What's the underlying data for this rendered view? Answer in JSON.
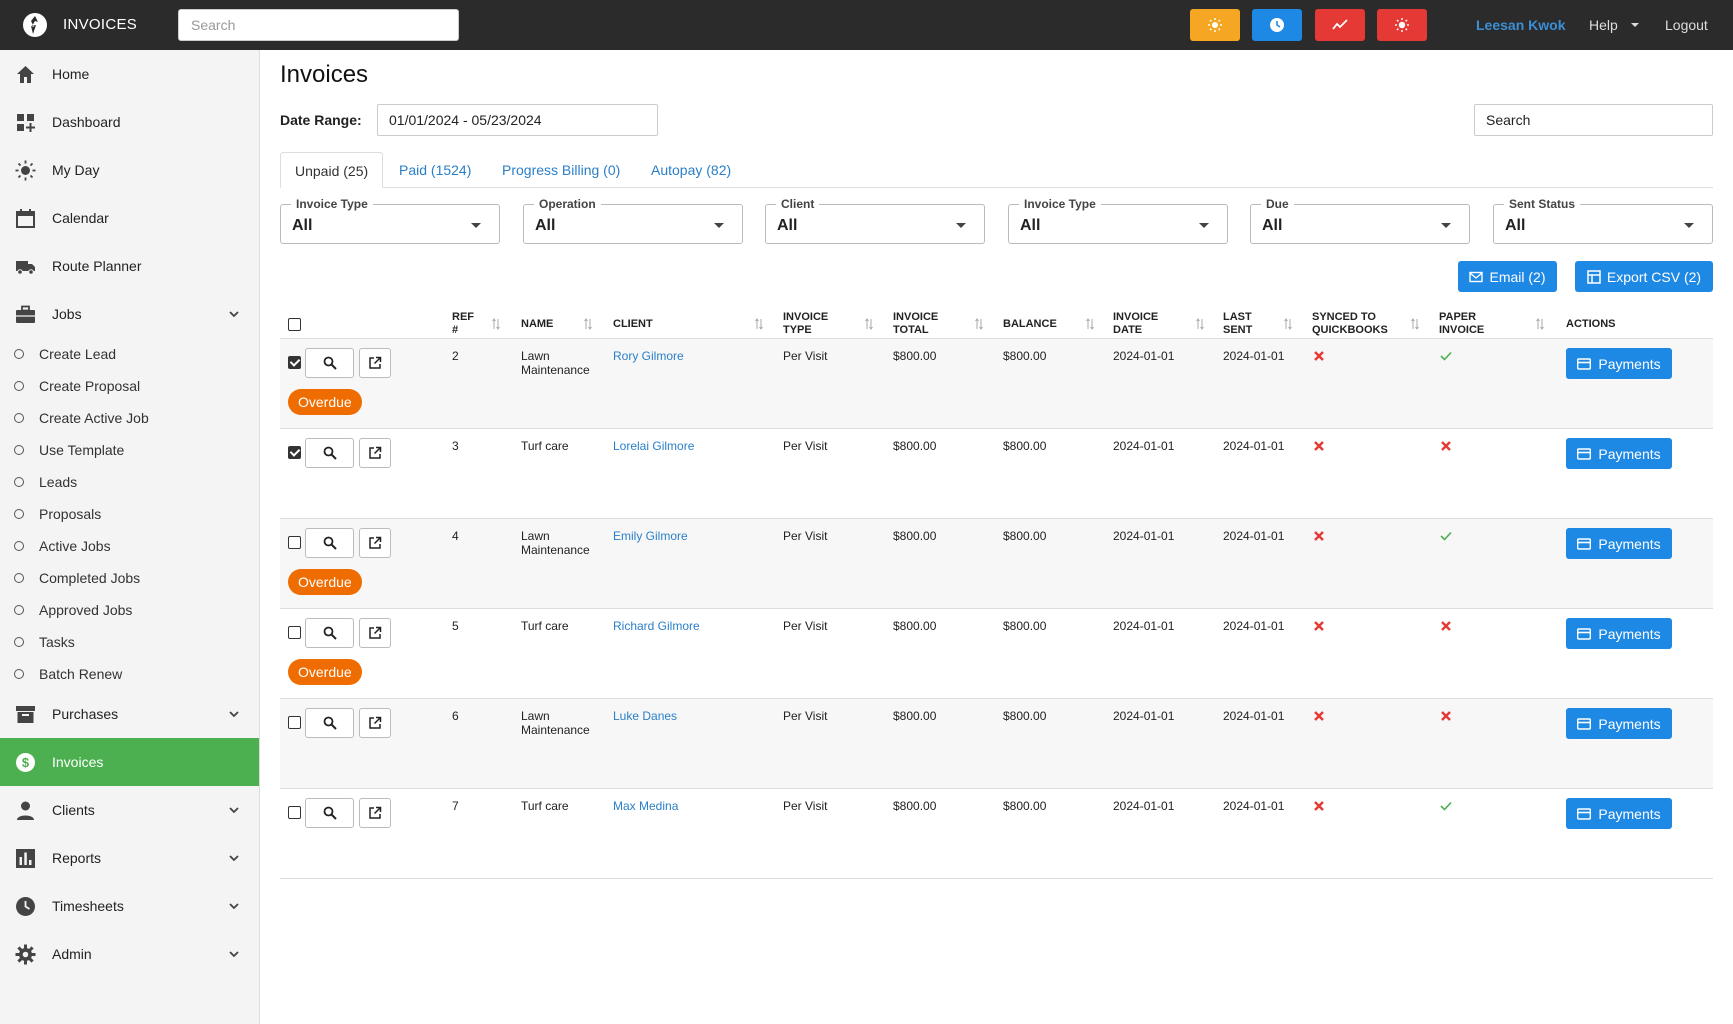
{
  "app": {
    "title": "INVOICES"
  },
  "topbar": {
    "search_placeholder": "Search",
    "quick_buttons": [
      {
        "icon": "sun-icon",
        "color": "#f5a623"
      },
      {
        "icon": "clock-icon",
        "color": "#1e88e5"
      },
      {
        "icon": "trend-icon",
        "color": "#e53935"
      },
      {
        "icon": "sun-bright-icon",
        "color": "#e53935"
      }
    ],
    "user": "Leesan Kwok",
    "help": "Help",
    "logout": "Logout"
  },
  "sidebar": {
    "items": [
      {
        "label": "Home",
        "icon": "home-icon"
      },
      {
        "label": "Dashboard",
        "icon": "dashboard-icon"
      },
      {
        "label": "My Day",
        "icon": "sun-icon"
      },
      {
        "label": "Calendar",
        "icon": "calendar-icon"
      },
      {
        "label": "Route Planner",
        "icon": "truck-icon"
      },
      {
        "label": "Jobs",
        "icon": "briefcase-icon"
      },
      {
        "label": "Purchases",
        "icon": "archive-icon"
      },
      {
        "label": "Invoices",
        "icon": "dollar-icon"
      },
      {
        "label": "Clients",
        "icon": "person-icon"
      },
      {
        "label": "Reports",
        "icon": "bar-chart-icon"
      },
      {
        "label": "Timesheets",
        "icon": "clock-icon"
      },
      {
        "label": "Admin",
        "icon": "gear-icon"
      }
    ],
    "jobs_sub": [
      "Create Lead",
      "Create Proposal",
      "Create Active Job",
      "Use Template",
      "Leads",
      "Proposals",
      "Active Jobs",
      "Completed Jobs",
      "Approved Jobs",
      "Tasks",
      "Batch Renew"
    ]
  },
  "page": {
    "title": "Invoices",
    "date_range_label": "Date Range:",
    "date_range_value": "01/01/2024 - 05/23/2024",
    "search_placeholder": "Search"
  },
  "tabs": [
    "Unpaid (25)",
    "Paid (1524)",
    "Progress Billing (0)",
    "Autopay (82)"
  ],
  "filters": [
    {
      "label": "Invoice Type",
      "value": "All"
    },
    {
      "label": "Operation",
      "value": "All"
    },
    {
      "label": "Client",
      "value": "All"
    },
    {
      "label": "Invoice Type",
      "value": "All"
    },
    {
      "label": "Due",
      "value": "All"
    },
    {
      "label": "Sent Status",
      "value": "All"
    }
  ],
  "actions": {
    "email": "Email (2)",
    "export": "Export CSV (2)"
  },
  "table": {
    "columns": [
      "REF",
      "#",
      "NAME",
      "CLIENT",
      "INVOICE",
      "TYPE",
      "INVOICE",
      "TOTAL",
      "BALANCE",
      "INVOICE",
      "DATE",
      "LAST",
      "SENT",
      "SYNCED TO",
      "QUICKBOOKS",
      "PAPER",
      "INVOICE",
      "ACTIONS"
    ],
    "overdue_label": "Overdue",
    "payments_label": "Payments",
    "rows": [
      {
        "ref": "2",
        "name": [
          "Lawn",
          "Maintenance"
        ],
        "client": "Rory Gilmore",
        "type": "Per Visit",
        "total": "$800.00",
        "balance": "$800.00",
        "date": "2024-01-01",
        "sent": "2024-01-01",
        "synced": false,
        "paper": true,
        "checked": true,
        "overdue": true
      },
      {
        "ref": "3",
        "name": [
          "Turf care",
          ""
        ],
        "client": "Lorelai Gilmore",
        "type": "Per Visit",
        "total": "$800.00",
        "balance": "$800.00",
        "date": "2024-01-01",
        "sent": "2024-01-01",
        "synced": false,
        "paper": false,
        "checked": true,
        "overdue": false
      },
      {
        "ref": "4",
        "name": [
          "Lawn",
          "Maintenance"
        ],
        "client": "Emily Gilmore",
        "type": "Per Visit",
        "total": "$800.00",
        "balance": "$800.00",
        "date": "2024-01-01",
        "sent": "2024-01-01",
        "synced": false,
        "paper": true,
        "checked": false,
        "overdue": true
      },
      {
        "ref": "5",
        "name": [
          "Turf care",
          ""
        ],
        "client": "Richard Gilmore",
        "type": "Per Visit",
        "total": "$800.00",
        "balance": "$800.00",
        "date": "2024-01-01",
        "sent": "2024-01-01",
        "synced": false,
        "paper": false,
        "checked": false,
        "overdue": true
      },
      {
        "ref": "6",
        "name": [
          "Lawn",
          "Maintenance"
        ],
        "client": "Luke Danes",
        "type": "Per Visit",
        "total": "$800.00",
        "balance": "$800.00",
        "date": "2024-01-01",
        "sent": "2024-01-01",
        "synced": false,
        "paper": false,
        "checked": false,
        "overdue": false
      },
      {
        "ref": "7",
        "name": [
          "Turf care",
          ""
        ],
        "client": "Max Medina",
        "type": "Per Visit",
        "total": "$800.00",
        "balance": "$800.00",
        "date": "2024-01-01",
        "sent": "2024-01-01",
        "synced": false,
        "paper": true,
        "checked": false,
        "overdue": false
      }
    ]
  },
  "colors": {
    "accent": "#1e88e5",
    "active_nav": "#4caf50",
    "overdue": "#ef6c00",
    "no_mark": "#e53935",
    "yes_mark": "#4caf50"
  }
}
